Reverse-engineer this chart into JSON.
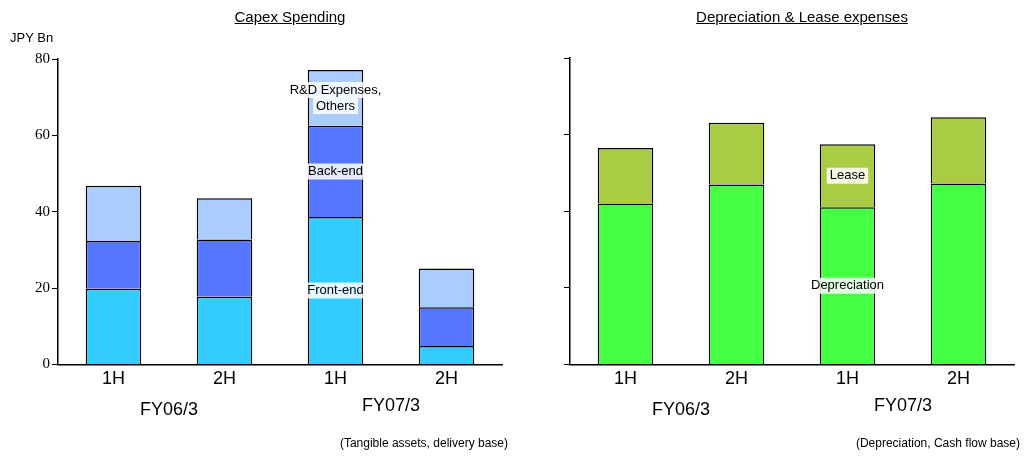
{
  "chart_data": [
    {
      "type": "bar",
      "title": "Capex Spending",
      "ylabel": "JPY Bn",
      "categories": [
        "1H",
        "2H",
        "1H",
        "2H"
      ],
      "stacked": true,
      "series": [
        {
          "name": "Front-end",
          "color": "#33ccff",
          "values": [
            19.8,
            17.7,
            38.6,
            4.8
          ]
        },
        {
          "name": "Back-end",
          "color": "#5577ff",
          "values": [
            12.5,
            15.0,
            23.9,
            10.2
          ]
        },
        {
          "name": "R&D Expenses, Others",
          "color": "#aaccff",
          "values": [
            14.5,
            10.8,
            14.6,
            10.1
          ]
        }
      ],
      "ylim": [
        0,
        80
      ],
      "yticks": [
        0,
        20,
        40,
        60,
        80
      ],
      "grid": false,
      "legend": false,
      "annotations": [
        "FY06/3",
        "FY07/3",
        "(Tangible assets, delivery base)"
      ]
    },
    {
      "type": "bar",
      "title": "Depreciation & Lease expenses",
      "categories": [
        "1H",
        "2H",
        "1H",
        "2H"
      ],
      "stacked": true,
      "series": [
        {
          "name": "Depreciation",
          "color": "#44ff44",
          "values": [
            42.0,
            47.0,
            41.0,
            47.2
          ]
        },
        {
          "name": "Lease",
          "color": "#aacc44",
          "values": [
            14.5,
            16.1,
            16.5,
            17.3
          ]
        }
      ],
      "ylim": [
        0,
        80
      ],
      "yticks": [
        0,
        20,
        40,
        60,
        80
      ],
      "grid": false,
      "legend": false,
      "tick_labels": "x",
      "annotations": [
        "FY06/3",
        "FY07/3",
        "(Depreciation, Cash flow base)"
      ]
    }
  ]
}
